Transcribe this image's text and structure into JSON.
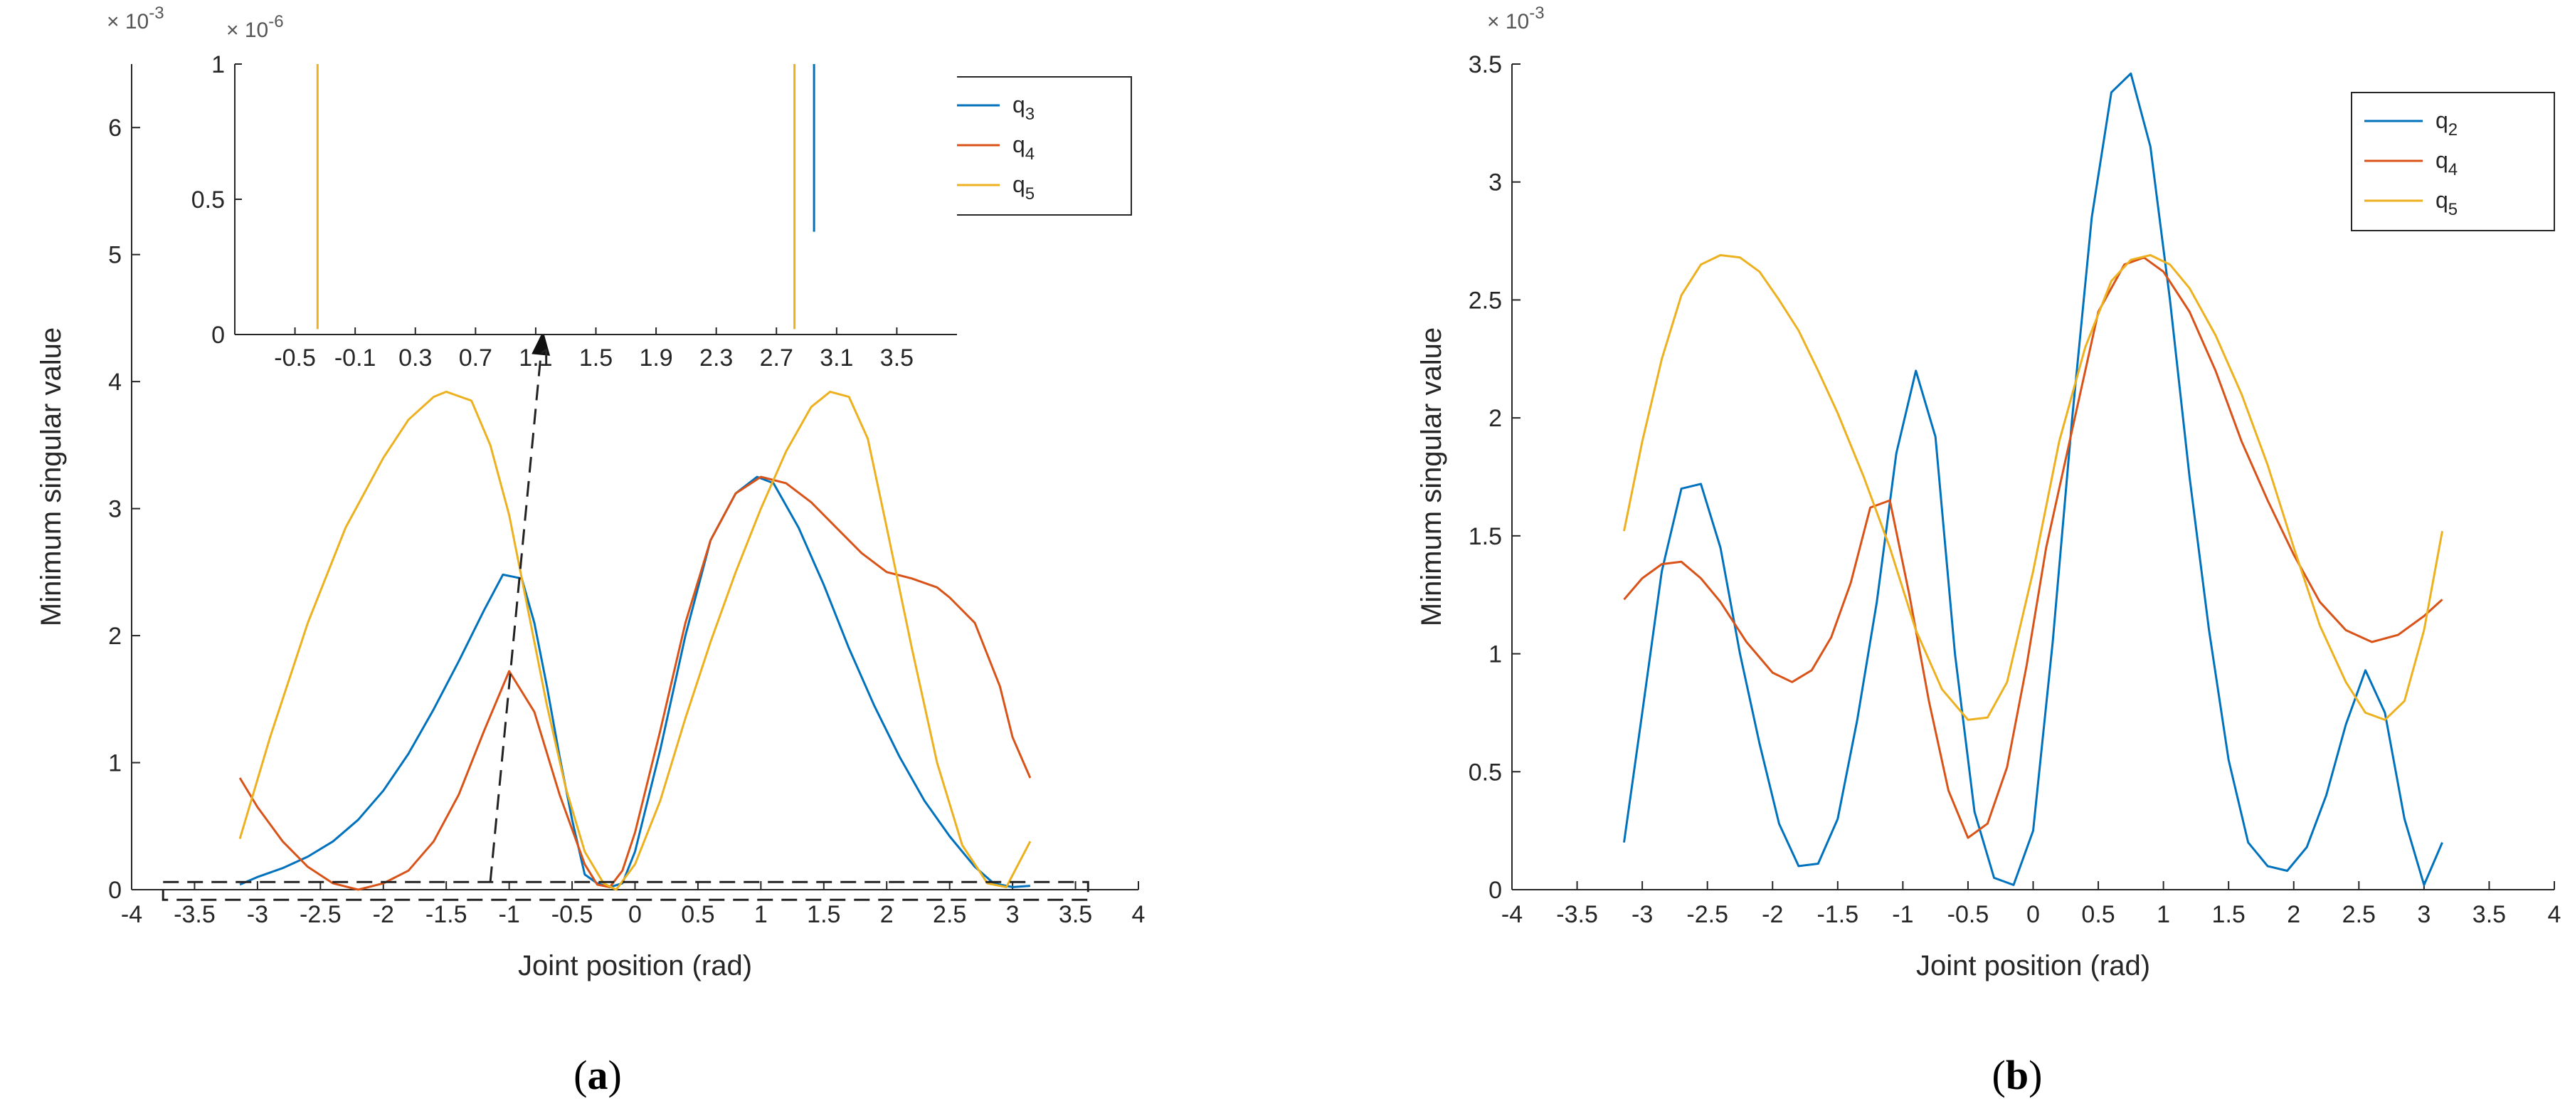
{
  "chart_data": [
    {
      "panel": "a",
      "type": "line",
      "caption_open": "(",
      "caption_letter": "a",
      "caption_close": ")",
      "xlabel": "Joint position (rad)",
      "ylabel": "Minimum singular value",
      "y_multiplier": "× 10-3",
      "xlim": [
        -4,
        4
      ],
      "ylim": [
        0,
        6.5
      ],
      "xticks": [
        -4,
        -3.5,
        -3,
        -2.5,
        -2,
        -1.5,
        -1,
        -0.5,
        0,
        0.5,
        1,
        1.5,
        2,
        2.5,
        3,
        3.5,
        4
      ],
      "yticks": [
        0,
        1,
        2,
        3,
        4,
        5,
        6
      ],
      "legend": [
        "q3",
        "q4",
        "q5"
      ],
      "legend_base": "q",
      "legend_subs": [
        "3",
        "4",
        "5"
      ],
      "series": [
        {
          "name": "q3",
          "color": "#0072BD",
          "x": [
            -3.14,
            -3.0,
            -2.8,
            -2.6,
            -2.4,
            -2.2,
            -2.0,
            -1.8,
            -1.6,
            -1.4,
            -1.2,
            -1.05,
            -0.9,
            -0.8,
            -0.7,
            -0.6,
            -0.5,
            -0.4,
            -0.3,
            -0.2,
            -0.1,
            0.0,
            0.2,
            0.4,
            0.6,
            0.8,
            0.97,
            1.1,
            1.3,
            1.5,
            1.7,
            1.9,
            2.1,
            2.3,
            2.5,
            2.7,
            2.85,
            3.0,
            3.14
          ],
          "values": [
            0.04,
            0.1,
            0.17,
            0.26,
            0.38,
            0.55,
            0.78,
            1.07,
            1.42,
            1.8,
            2.2,
            2.48,
            2.45,
            2.1,
            1.6,
            1.05,
            0.55,
            0.12,
            0.05,
            0.02,
            0.05,
            0.3,
            1.1,
            2.0,
            2.75,
            3.12,
            3.25,
            3.2,
            2.85,
            2.4,
            1.9,
            1.45,
            1.05,
            0.7,
            0.42,
            0.18,
            0.05,
            0.02,
            0.03
          ]
        },
        {
          "name": "q4",
          "color": "#D95319",
          "x": [
            -3.14,
            -3.0,
            -2.8,
            -2.6,
            -2.4,
            -2.2,
            -2.0,
            -1.8,
            -1.6,
            -1.4,
            -1.2,
            -1.0,
            -0.8,
            -0.6,
            -0.4,
            -0.3,
            -0.2,
            -0.1,
            0.0,
            0.2,
            0.4,
            0.6,
            0.8,
            1.0,
            1.2,
            1.4,
            1.6,
            1.8,
            2.0,
            2.2,
            2.4,
            2.5,
            2.7,
            2.9,
            3.0,
            3.14
          ],
          "values": [
            0.88,
            0.65,
            0.38,
            0.18,
            0.05,
            0.0,
            0.05,
            0.15,
            0.38,
            0.75,
            1.25,
            1.72,
            1.4,
            0.75,
            0.2,
            0.04,
            0.02,
            0.15,
            0.45,
            1.25,
            2.1,
            2.75,
            3.12,
            3.25,
            3.2,
            3.05,
            2.85,
            2.65,
            2.5,
            2.45,
            2.38,
            2.3,
            2.1,
            1.6,
            1.2,
            0.88
          ]
        },
        {
          "name": "q5",
          "color": "#EDB120",
          "x": [
            -3.14,
            -2.9,
            -2.6,
            -2.3,
            -2.0,
            -1.8,
            -1.6,
            -1.5,
            -1.3,
            -1.15,
            -1.0,
            -0.85,
            -0.7,
            -0.55,
            -0.4,
            -0.25,
            -0.15,
            0.0,
            0.2,
            0.4,
            0.6,
            0.8,
            1.0,
            1.2,
            1.4,
            1.55,
            1.7,
            1.85,
            2.0,
            2.2,
            2.4,
            2.6,
            2.8,
            2.95,
            3.14
          ],
          "values": [
            0.4,
            1.2,
            2.1,
            2.85,
            3.4,
            3.7,
            3.88,
            3.92,
            3.85,
            3.5,
            2.95,
            2.2,
            1.45,
            0.8,
            0.3,
            0.05,
            0.0,
            0.2,
            0.7,
            1.35,
            1.95,
            2.5,
            3.0,
            3.45,
            3.8,
            3.92,
            3.88,
            3.55,
            2.85,
            1.9,
            1.0,
            0.35,
            0.05,
            0.02,
            0.38
          ]
        }
      ],
      "inset": {
        "y_multiplier": "× 10-6",
        "xlim": [
          -0.9,
          3.9
        ],
        "ylim": [
          0,
          1
        ],
        "xticks": [
          -0.5,
          -0.1,
          0.3,
          0.7,
          1.1,
          1.5,
          1.9,
          2.3,
          2.7,
          3.1,
          3.5
        ],
        "yticks": [
          0,
          0.5,
          1
        ],
        "spikes": [
          {
            "series": "q5",
            "x": -0.35,
            "y_from": 0.02,
            "y_to": 1.0,
            "color": "#EDB120"
          },
          {
            "series": "q5",
            "x": 2.82,
            "y_from": 0.02,
            "y_to": 1.0,
            "color": "#EDB120"
          },
          {
            "series": "q3",
            "x": 2.95,
            "y_from": 0.38,
            "y_to": 1.0,
            "color": "#0072BD"
          }
        ]
      },
      "zoom_annotation": {
        "box_x": [
          -3.75,
          3.6
        ],
        "box_y": [
          -0.08,
          0.06
        ],
        "arrow_from": [
          -1.15,
          0.06
        ],
        "arrow_to": [
          -0.73,
          4.4
        ]
      }
    },
    {
      "panel": "b",
      "type": "line",
      "caption_open": "(",
      "caption_letter": "b",
      "caption_close": ")",
      "xlabel": "Joint position (rad)",
      "ylabel": "Minimum singular value",
      "y_multiplier": "× 10-3",
      "xlim": [
        -4,
        4
      ],
      "ylim": [
        0,
        3.5
      ],
      "xticks": [
        -4,
        -3.5,
        -3,
        -2.5,
        -2,
        -1.5,
        -1,
        -0.5,
        0,
        0.5,
        1,
        1.5,
        2,
        2.5,
        3,
        3.5,
        4
      ],
      "yticks": [
        0,
        0.5,
        1,
        1.5,
        2,
        2.5,
        3,
        3.5
      ],
      "legend": [
        "q2",
        "q4",
        "q5"
      ],
      "legend_base": "q",
      "legend_subs": [
        "2",
        "4",
        "5"
      ],
      "series": [
        {
          "name": "q2",
          "color": "#0072BD",
          "x": [
            -3.14,
            -3.0,
            -2.85,
            -2.7,
            -2.55,
            -2.4,
            -2.25,
            -2.1,
            -1.95,
            -1.8,
            -1.65,
            -1.5,
            -1.35,
            -1.2,
            -1.05,
            -0.9,
            -0.75,
            -0.6,
            -0.45,
            -0.3,
            -0.15,
            0.0,
            0.15,
            0.3,
            0.45,
            0.6,
            0.75,
            0.9,
            1.05,
            1.2,
            1.35,
            1.5,
            1.65,
            1.8,
            1.95,
            2.1,
            2.25,
            2.4,
            2.55,
            2.7,
            2.85,
            3.0,
            3.14
          ],
          "values": [
            0.2,
            0.75,
            1.35,
            1.7,
            1.72,
            1.45,
            1.0,
            0.62,
            0.28,
            0.1,
            0.11,
            0.3,
            0.72,
            1.22,
            1.85,
            2.2,
            1.92,
            1.0,
            0.33,
            0.05,
            0.02,
            0.25,
            1.05,
            2.0,
            2.85,
            3.38,
            3.46,
            3.15,
            2.5,
            1.75,
            1.1,
            0.55,
            0.2,
            0.1,
            0.08,
            0.18,
            0.4,
            0.7,
            0.93,
            0.75,
            0.3,
            0.02,
            0.2
          ]
        },
        {
          "name": "q4",
          "color": "#D95319",
          "x": [
            -3.14,
            -3.0,
            -2.85,
            -2.7,
            -2.55,
            -2.4,
            -2.2,
            -2.0,
            -1.85,
            -1.7,
            -1.55,
            -1.4,
            -1.25,
            -1.1,
            -0.95,
            -0.8,
            -0.65,
            -0.5,
            -0.35,
            -0.2,
            -0.05,
            0.1,
            0.3,
            0.5,
            0.7,
            0.85,
            1.0,
            1.2,
            1.4,
            1.6,
            1.8,
            2.0,
            2.2,
            2.4,
            2.6,
            2.8,
            3.0,
            3.14
          ],
          "values": [
            1.23,
            1.32,
            1.38,
            1.39,
            1.32,
            1.22,
            1.05,
            0.92,
            0.88,
            0.93,
            1.07,
            1.3,
            1.62,
            1.65,
            1.25,
            0.8,
            0.42,
            0.22,
            0.28,
            0.52,
            0.95,
            1.45,
            1.95,
            2.45,
            2.65,
            2.68,
            2.62,
            2.45,
            2.2,
            1.9,
            1.65,
            1.42,
            1.22,
            1.1,
            1.05,
            1.08,
            1.16,
            1.23
          ]
        },
        {
          "name": "q5",
          "color": "#EDB120",
          "x": [
            -3.14,
            -3.0,
            -2.85,
            -2.7,
            -2.55,
            -2.4,
            -2.25,
            -2.1,
            -1.95,
            -1.8,
            -1.65,
            -1.5,
            -1.3,
            -1.1,
            -0.9,
            -0.7,
            -0.5,
            -0.35,
            -0.2,
            0.0,
            0.2,
            0.4,
            0.6,
            0.75,
            0.9,
            1.05,
            1.2,
            1.4,
            1.6,
            1.8,
            2.0,
            2.2,
            2.4,
            2.55,
            2.7,
            2.85,
            3.0,
            3.14
          ],
          "values": [
            1.52,
            1.9,
            2.25,
            2.52,
            2.65,
            2.69,
            2.68,
            2.62,
            2.5,
            2.37,
            2.2,
            2.02,
            1.75,
            1.45,
            1.1,
            0.85,
            0.72,
            0.73,
            0.88,
            1.35,
            1.9,
            2.3,
            2.58,
            2.67,
            2.69,
            2.65,
            2.55,
            2.35,
            2.1,
            1.8,
            1.45,
            1.12,
            0.88,
            0.75,
            0.72,
            0.8,
            1.1,
            1.52
          ]
        }
      ]
    }
  ]
}
